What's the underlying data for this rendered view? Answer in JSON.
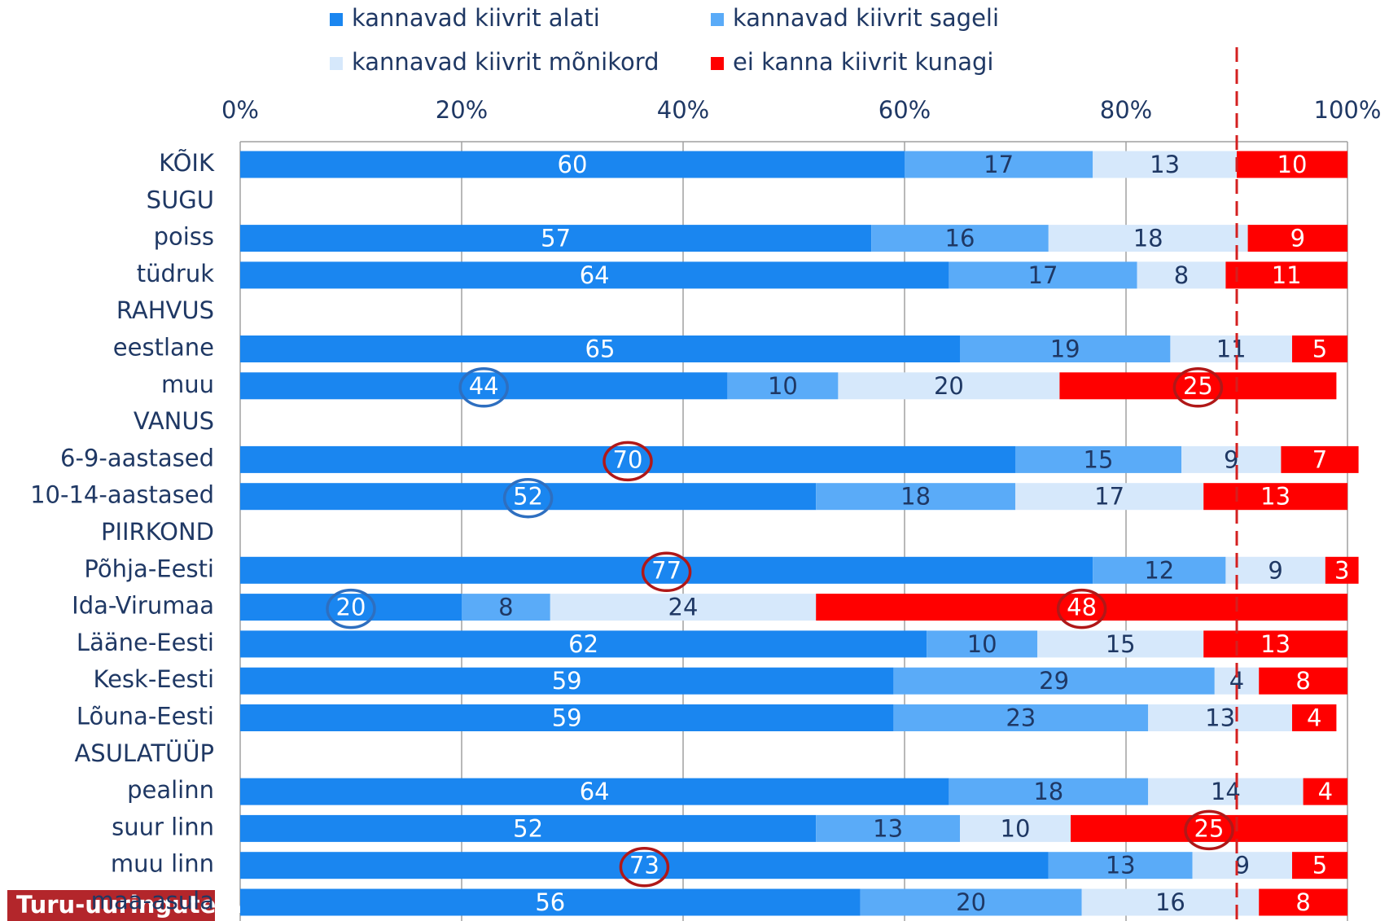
{
  "chart_data": {
    "type": "stacked_barh",
    "categories": [
      "KÕIK",
      "SUGU",
      "poiss",
      "tüdruk",
      "RAHVUS",
      "eestlane",
      "muu",
      "VANUS",
      "6-9-aastased",
      "10-14-aastased",
      "PIIRKOND",
      "Põhja-Eesti",
      "Ida-Virumaa",
      "Lääne-Eesti",
      "Kesk-Eesti",
      "Lõuna-Eesti",
      "ASULATÜÜP",
      "pealinn",
      "suur linn",
      "muu linn",
      "maa-asula"
    ],
    "series": [
      {
        "name": "kannavad kiivrit alati",
        "color": "#1a86f0",
        "values": [
          60,
          null,
          57,
          64,
          null,
          65,
          44,
          null,
          70,
          52,
          null,
          77,
          20,
          62,
          59,
          59,
          null,
          64,
          52,
          73,
          56
        ]
      },
      {
        "name": "kannavad kiivrit sageli",
        "color": "#5aabf8",
        "values": [
          17,
          null,
          16,
          17,
          null,
          19,
          10,
          null,
          15,
          18,
          null,
          12,
          8,
          10,
          29,
          23,
          null,
          18,
          13,
          13,
          20
        ]
      },
      {
        "name": "kannavad kiivrit mõnikord",
        "color": "#d6e8fb",
        "values": [
          13,
          null,
          18,
          8,
          null,
          11,
          20,
          null,
          9,
          17,
          null,
          9,
          24,
          15,
          4,
          13,
          null,
          14,
          10,
          9,
          16
        ]
      },
      {
        "name": "ei kanna kiivrit kunagi",
        "color": "#ff0000",
        "values": [
          10,
          null,
          9,
          11,
          null,
          5,
          25,
          null,
          7,
          13,
          null,
          3,
          48,
          13,
          8,
          4,
          null,
          4,
          25,
          5,
          8
        ]
      }
    ],
    "xlim": [
      0,
      100
    ],
    "xticks": [
      {
        "value": 0,
        "label": "0%"
      },
      {
        "value": 20,
        "label": "20%"
      },
      {
        "value": 40,
        "label": "40%"
      },
      {
        "value": 60,
        "label": "60%"
      },
      {
        "value": 80,
        "label": "80%"
      },
      {
        "value": 100,
        "label": "100%"
      }
    ],
    "grid": true,
    "reference_line": {
      "value": 90,
      "color": "#d42020"
    },
    "highlights": [
      {
        "series": 0,
        "category": 6,
        "color": "#2e6fc0"
      },
      {
        "series": 3,
        "category": 6,
        "color": "#b01818"
      },
      {
        "series": 0,
        "category": 8,
        "color": "#b01818"
      },
      {
        "series": 0,
        "category": 9,
        "color": "#2e6fc0"
      },
      {
        "series": 0,
        "category": 11,
        "color": "#b01818"
      },
      {
        "series": 0,
        "category": 12,
        "color": "#2e6fc0"
      },
      {
        "series": 3,
        "category": 12,
        "color": "#b01818"
      },
      {
        "series": 3,
        "category": 18,
        "color": "#b01818"
      },
      {
        "series": 0,
        "category": 19,
        "color": "#b01818"
      }
    ],
    "logo": "Turu-uuringute AS"
  }
}
